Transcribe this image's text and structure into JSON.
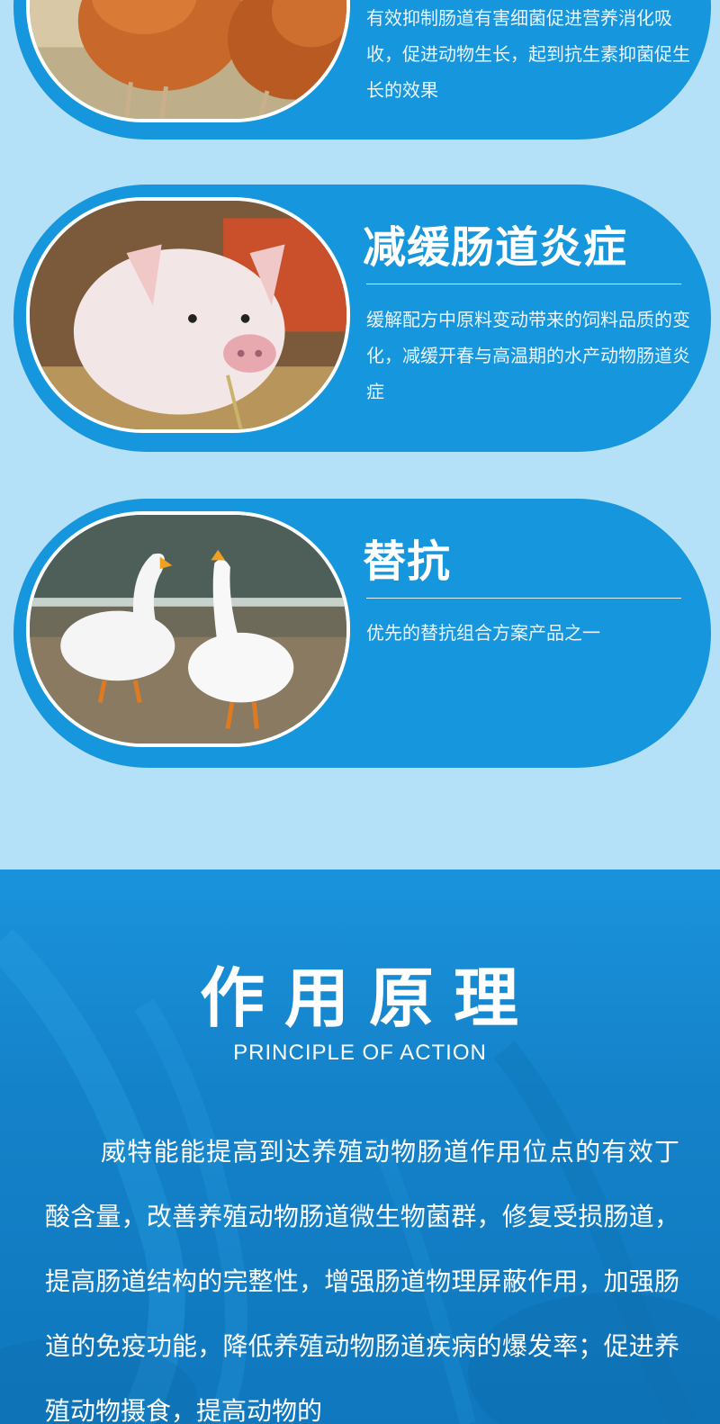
{
  "cards": [
    {
      "title": "",
      "description": "有效抑制肠道有害细菌促进营养消化吸收，促进动物生长，起到抗生素抑菌促生长的效果",
      "image": "chicken-photo"
    },
    {
      "title": "减缓肠道炎症",
      "description": "缓解配方中原料变动带来的饲料品质的变化，减缓开春与高温期的水产动物肠道炎症",
      "image": "piglet-photo"
    },
    {
      "title": "替抗",
      "description": "优先的替抗组合方案产品之一",
      "image": "geese-photo"
    }
  ],
  "principle": {
    "title": "作用原理",
    "subtitle": "PRINCIPLE OF ACTION",
    "body": "威特能能提高到达养殖动物肠道作用位点的有效丁酸含量，改善养殖动物肠道微生物菌群，修复受损肠道，提高肠道结构的完整性，增强肠道物理屏蔽作用，加强肠道的免疫功能，降低养殖动物肠道疾病的爆发率；促进养殖动物摄食，提高动物的"
  },
  "colors": {
    "page_bg": "#b5e1f8",
    "card_bg": "#1696dc",
    "section_bg": "#1482c9"
  }
}
